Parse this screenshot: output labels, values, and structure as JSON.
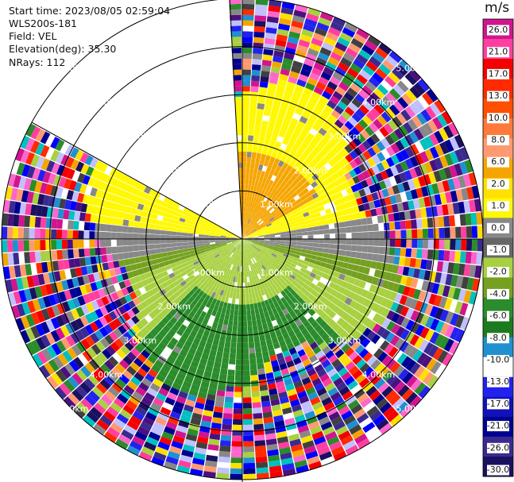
{
  "header": {
    "start_time": "Start time: 2023/08/05 02:59:04",
    "instrument": "WLS200s-181",
    "field": "Field: VEL",
    "elevation": "Elevation(deg): 35.30",
    "nrays": "NRays: 112"
  },
  "chart_data": {
    "type": "heatmap",
    "projection": "polar-ppi",
    "field": "VEL",
    "units": "m/s",
    "max_range_km": 5.0,
    "ring_labels": [
      "1.00km",
      "2.00km",
      "3.00km",
      "4.00km",
      "5.00km"
    ],
    "missing_sector_deg": [
      -61,
      -3
    ],
    "colorbar": {
      "title": "m/s",
      "ticks": [
        "26.0",
        "21.0",
        "17.0",
        "13.0",
        "10.0",
        "8.0",
        "6.0",
        "2.0",
        "1.0",
        "0.0",
        "-1.0",
        "-2.0",
        "-4.0",
        "-6.0",
        "-8.0",
        "-10.0",
        "-13.0",
        "-17.0",
        "-21.0",
        "-26.0",
        "-30.0"
      ],
      "colors": [
        "#d1158f",
        "#ff3fa0",
        "#f50000",
        "#ff2a00",
        "#ff4f00",
        "#ff7a3a",
        "#ff9a70",
        "#f5a500",
        "#ffe000",
        "#fff800",
        "#888888",
        "#666666",
        "#a8d040",
        "#75a020",
        "#2a8c2a",
        "#1e7a1e",
        "#2090d0",
        "#ffffff",
        "#2222ee",
        "#1111bb",
        "#000090",
        "#3a2a90",
        "#1a1060"
      ]
    }
  }
}
